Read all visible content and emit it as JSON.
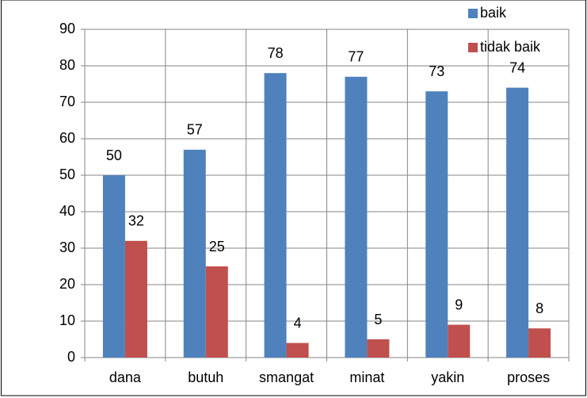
{
  "chart_data": {
    "type": "bar",
    "categories": [
      "dana",
      "butuh",
      "smangat",
      "minat",
      "yakin",
      "proses"
    ],
    "series": [
      {
        "name": "baik",
        "color": "#4f81bd",
        "values": [
          50,
          57,
          78,
          77,
          73,
          74
        ]
      },
      {
        "name": "tidak baik",
        "color": "#c0504d",
        "values": [
          32,
          25,
          4,
          5,
          9,
          8
        ]
      }
    ],
    "ylim": [
      0,
      90
    ],
    "yticks": [
      0,
      10,
      20,
      30,
      40,
      50,
      60,
      70,
      80,
      90
    ],
    "grid": true,
    "legend": "top-right",
    "data_labels": true
  }
}
